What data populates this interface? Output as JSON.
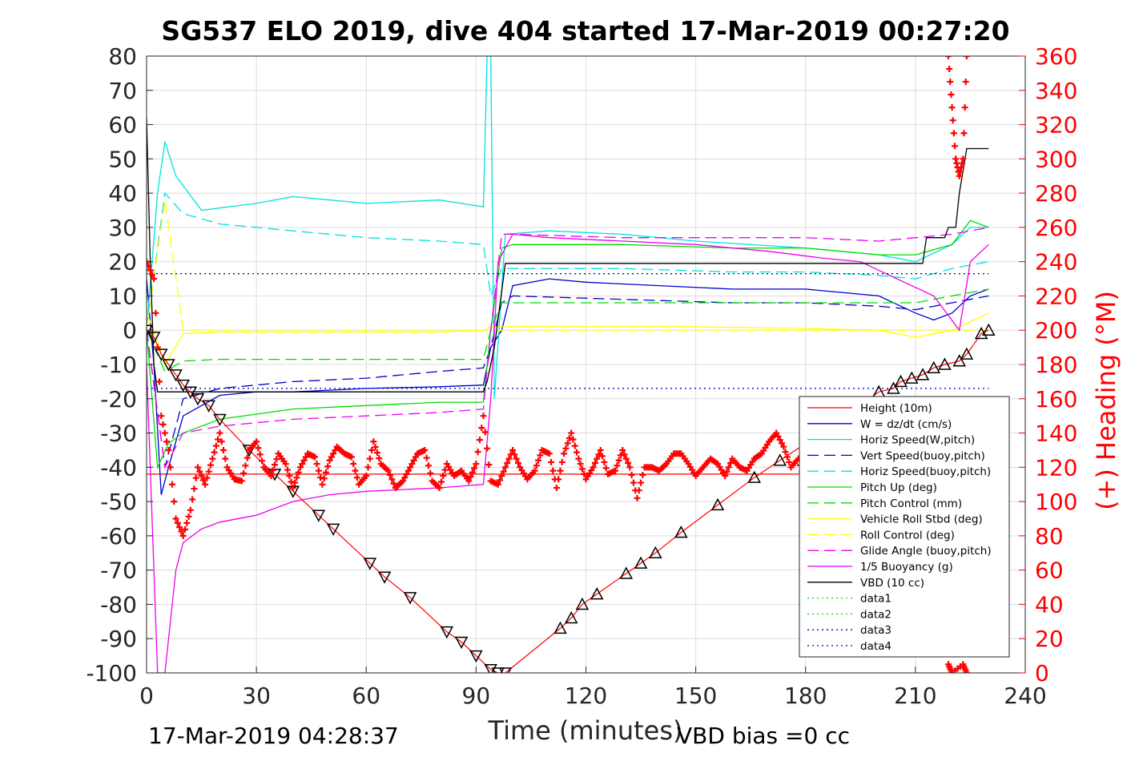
{
  "chart_data": {
    "type": "line",
    "title": "SG537 ELO 2019, dive 404 started 17-Mar-2019 00:27:20",
    "xlabel": "Time (minutes)",
    "ylabel_right": "(+) Heading (°M)",
    "xlim": [
      0,
      240
    ],
    "ylim": [
      -100,
      80
    ],
    "ylim_right": [
      0,
      360
    ],
    "x_ticks": [
      "0",
      "30",
      "60",
      "90",
      "120",
      "150",
      "180",
      "210",
      "240"
    ],
    "y_ticks": [
      "80",
      "70",
      "60",
      "50",
      "40",
      "30",
      "20",
      "10",
      "0",
      "-10",
      "-20",
      "-30",
      "-40",
      "-50",
      "-60",
      "-70",
      "-80",
      "-90",
      "-100"
    ],
    "y_ticks_right": [
      "360",
      "340",
      "320",
      "300",
      "280",
      "260",
      "240",
      "220",
      "200",
      "180",
      "160",
      "140",
      "120",
      "100",
      "80",
      "60",
      "40",
      "20",
      "0"
    ],
    "grid": true,
    "legend_position": "bottom-right",
    "footer_left": "17-Mar-2019 04:28:37",
    "footer_right": "VBD bias =0 cc",
    "colors": {
      "red": "#ff0000",
      "blue": "#0000cc",
      "cyan": "#00e0e0",
      "green": "#00dd00",
      "yellow": "#ffff00",
      "magenta": "#ee00ee",
      "black": "#000000",
      "heading": "#ff0000"
    },
    "series": [
      {
        "name": "Height (10m)",
        "color": "#ff0000",
        "style": "solid",
        "x": [
          0,
          10,
          30,
          50,
          70,
          90,
          100,
          120,
          150,
          180,
          210,
          230
        ],
        "y": [
          -42,
          -42,
          -42,
          -42,
          -42,
          -42,
          -42,
          -42,
          -42,
          -42,
          -42,
          -42
        ]
      },
      {
        "name": "W = dz/dt (cm/s)",
        "color": "#0000cc",
        "style": "solid",
        "x": [
          0,
          2,
          4,
          6,
          10,
          20,
          30,
          40,
          60,
          80,
          92,
          94,
          97,
          100,
          110,
          120,
          140,
          160,
          180,
          200,
          210,
          215,
          220,
          225,
          230
        ],
        "y": [
          15,
          -10,
          -48,
          -40,
          -25,
          -19,
          -18,
          -18,
          -17,
          -16.5,
          -16,
          -5,
          0,
          13,
          15,
          14,
          13,
          12,
          12,
          10,
          5,
          3,
          5,
          10,
          12
        ]
      },
      {
        "name": "Horiz Speed(W,pitch)",
        "color": "#00e0e0",
        "style": "solid",
        "x": [
          0,
          3,
          5,
          8,
          15,
          30,
          40,
          60,
          80,
          92,
          93,
          94,
          95,
          98,
          110,
          130,
          150,
          180,
          200,
          210,
          220,
          225,
          230
        ],
        "y": [
          0,
          40,
          55,
          45,
          35,
          37,
          39,
          37,
          38,
          36,
          80,
          80,
          -20,
          28,
          29,
          28,
          26,
          24,
          22,
          20,
          25,
          30,
          30
        ]
      },
      {
        "name": "Vert Speed(buoy,pitch)",
        "color": "#0000cc",
        "style": "dashed",
        "x": [
          0,
          5,
          10,
          20,
          40,
          60,
          80,
          92,
          94,
          97,
          100,
          130,
          160,
          180,
          200,
          210,
          220,
          230
        ],
        "y": [
          0,
          -40,
          -20,
          -17,
          -15,
          -14,
          -12,
          -11,
          -5,
          8,
          10,
          9,
          8,
          8,
          7,
          6,
          8,
          10
        ]
      },
      {
        "name": "Horiz Speed(buoy,pitch)",
        "color": "#00e0e0",
        "style": "dashed",
        "x": [
          0,
          5,
          10,
          20,
          40,
          60,
          80,
          92,
          94,
          97,
          100,
          130,
          160,
          180,
          200,
          210,
          220,
          230
        ],
        "y": [
          0,
          40,
          34,
          31,
          29,
          27,
          26,
          25,
          10,
          18,
          18,
          18,
          17,
          17,
          16,
          15,
          18,
          20
        ]
      },
      {
        "name": "Pitch Up (deg)",
        "color": "#00dd00",
        "style": "solid",
        "x": [
          0,
          3,
          6,
          10,
          20,
          40,
          60,
          80,
          92,
          94,
          97,
          100,
          130,
          160,
          180,
          200,
          210,
          220,
          225,
          230
        ],
        "y": [
          0,
          -40,
          -33,
          -30,
          -26,
          -23,
          -22,
          -21,
          -21,
          0,
          24,
          25,
          25,
          24,
          24,
          22,
          22,
          25,
          32,
          30
        ]
      },
      {
        "name": "Pitch Control (mm)",
        "color": "#00dd00",
        "style": "dashed",
        "x": [
          0,
          5,
          10,
          20,
          40,
          60,
          80,
          92,
          94,
          97,
          100,
          130,
          160,
          180,
          200,
          210,
          220,
          230
        ],
        "y": [
          0,
          -12,
          -9,
          -8.5,
          -8.5,
          -8.5,
          -8.5,
          -8.5,
          0,
          8,
          8,
          8,
          8,
          8,
          8,
          8,
          10,
          12
        ]
      },
      {
        "name": "Vehicle Roll Stbd (deg)",
        "color": "#ffff00",
        "style": "solid",
        "x": [
          0,
          2,
          5,
          10,
          20,
          40,
          60,
          80,
          92,
          94,
          100,
          120,
          150,
          180,
          200,
          210,
          220,
          230
        ],
        "y": [
          5,
          0,
          -10,
          -1,
          -0.5,
          -0.5,
          -0.5,
          -0.5,
          0,
          1,
          1,
          1,
          1,
          0.5,
          0,
          -2,
          0,
          5
        ]
      },
      {
        "name": "Roll Control (deg)",
        "color": "#ffff00",
        "style": "dashed",
        "x": [
          0,
          5,
          10,
          40,
          90,
          94,
          120,
          180,
          210,
          230
        ],
        "y": [
          0,
          38,
          0,
          0,
          0,
          0,
          0,
          0,
          0,
          0
        ]
      },
      {
        "name": "Glide Angle (buoy,pitch)",
        "color": "#ee00ee",
        "style": "dashed",
        "x": [
          0,
          5,
          10,
          20,
          40,
          60,
          80,
          92,
          94,
          97,
          100,
          130,
          160,
          180,
          200,
          210,
          220,
          230
        ],
        "y": [
          0,
          -40,
          -30,
          -28,
          -26,
          -25,
          -24,
          -23,
          0,
          28,
          28,
          27,
          27,
          27,
          26,
          27,
          28,
          30
        ]
      },
      {
        "name": "1/5 Buoyancy (g)",
        "color": "#ee00ee",
        "style": "solid",
        "x": [
          0,
          3,
          5,
          8,
          10,
          15,
          20,
          30,
          40,
          50,
          60,
          80,
          92,
          94,
          96,
          100,
          110,
          130,
          150,
          170,
          185,
          195,
          205,
          215,
          222,
          225,
          230
        ],
        "y": [
          -10,
          -100,
          -100,
          -70,
          -62,
          -58,
          -56,
          -54,
          -50,
          -48,
          -47,
          -46,
          -45,
          -20,
          20,
          28,
          27,
          26,
          25,
          23,
          21,
          20,
          15,
          10,
          0,
          20,
          25
        ]
      },
      {
        "name": "VBD (10 cc)",
        "color": "#000000",
        "style": "solid",
        "x": [
          0,
          1,
          2,
          3,
          6,
          30,
          60,
          92,
          93,
          95,
          98,
          130,
          160,
          190,
          212,
          213,
          218,
          219,
          221,
          222,
          224,
          230
        ],
        "y": [
          62,
          20,
          -10,
          -18,
          -18,
          -18,
          -18,
          -18,
          -15,
          -5,
          19.5,
          19.5,
          19.5,
          19.5,
          19.5,
          27,
          27,
          30,
          30,
          40,
          53,
          53
        ]
      },
      {
        "name": "data1",
        "color": "#00dd00",
        "style": "dotted",
        "x": [
          0,
          230
        ],
        "y": [
          -17,
          -17
        ]
      },
      {
        "name": "data2",
        "color": "#00dd00",
        "style": "dotted",
        "x": [
          0,
          230
        ],
        "y": [
          16.5,
          16.5
        ]
      },
      {
        "name": "data3",
        "color": "#0000cc",
        "style": "dotted",
        "x": [
          0,
          230
        ],
        "y": [
          -17,
          -17
        ]
      },
      {
        "name": "data4",
        "color": "#0000cc",
        "style": "dotted",
        "x": [
          0,
          230
        ],
        "y": [
          16.5,
          16.5
        ]
      }
    ],
    "depth_profile": {
      "color": "#ff0000",
      "marker": "triangle",
      "x": [
        0,
        2,
        4,
        6,
        8,
        10,
        12,
        14,
        17,
        20,
        28,
        35,
        40,
        47,
        51,
        61,
        65,
        72,
        82,
        86,
        90,
        94,
        96,
        98,
        113,
        116,
        119,
        123,
        131,
        135,
        139,
        146,
        156,
        166,
        173,
        190,
        200,
        204,
        206,
        209,
        212,
        215,
        218,
        222,
        224,
        228,
        230
      ],
      "y": [
        0,
        -2,
        -7,
        -10,
        -13,
        -16,
        -18,
        -20,
        -22,
        -26,
        -35,
        -42,
        -47,
        -54,
        -58,
        -68,
        -72,
        -78,
        -88,
        -91,
        -95,
        -99,
        -100,
        -100,
        -87,
        -84,
        -80,
        -77,
        -71,
        -68,
        -65,
        -59,
        -51,
        -43,
        -38,
        -26,
        -18,
        -17,
        -15,
        -14,
        -13,
        -11,
        -10,
        -9,
        -7,
        -1,
        0
      ]
    },
    "heading": {
      "name": "(+) Heading (°M)",
      "color": "#ff0000",
      "marker": "plus",
      "x": [
        0,
        2,
        4,
        6,
        8,
        10,
        12,
        14,
        16,
        18,
        20,
        22,
        24,
        26,
        28,
        30,
        32,
        34,
        36,
        38,
        40,
        42,
        44,
        46,
        48,
        50,
        52,
        54,
        56,
        58,
        60,
        62,
        64,
        66,
        68,
        70,
        72,
        74,
        76,
        78,
        80,
        82,
        84,
        86,
        88,
        90,
        92,
        94,
        96,
        98,
        100,
        102,
        104,
        106,
        108,
        110,
        112,
        114,
        116,
        118,
        120,
        122,
        124,
        126,
        128,
        130,
        132,
        134,
        136,
        138,
        140,
        142,
        144,
        146,
        148,
        150,
        152,
        154,
        156,
        158,
        160,
        162,
        164,
        166,
        168,
        170,
        172,
        174,
        176,
        178,
        180
      ],
      "y": [
        240,
        230,
        150,
        130,
        90,
        80,
        95,
        120,
        110,
        125,
        140,
        120,
        113,
        112,
        130,
        135,
        120,
        115,
        128,
        122,
        108,
        120,
        128,
        126,
        110,
        124,
        132,
        128,
        126,
        110,
        115,
        135,
        122,
        118,
        108,
        112,
        120,
        128,
        130,
        112,
        108,
        122,
        115,
        118,
        112,
        122,
        150,
        112,
        110,
        120,
        130,
        120,
        113,
        118,
        130,
        128,
        108,
        128,
        140,
        125,
        113,
        120,
        130,
        116,
        118,
        130,
        120,
        102,
        120,
        120,
        118,
        122,
        128,
        128,
        122,
        115,
        120,
        125,
        122,
        115,
        125,
        120,
        118,
        125,
        128,
        135,
        140,
        132,
        120,
        125,
        110
      ]
    },
    "heading_high_spike": {
      "x": [
        219,
        220,
        221,
        222,
        223,
        224
      ],
      "y": [
        360,
        330,
        300,
        290,
        300,
        360
      ]
    },
    "heading_low_spike": {
      "x": [
        219,
        220,
        223,
        224
      ],
      "y": [
        5,
        0,
        5,
        0
      ]
    }
  }
}
